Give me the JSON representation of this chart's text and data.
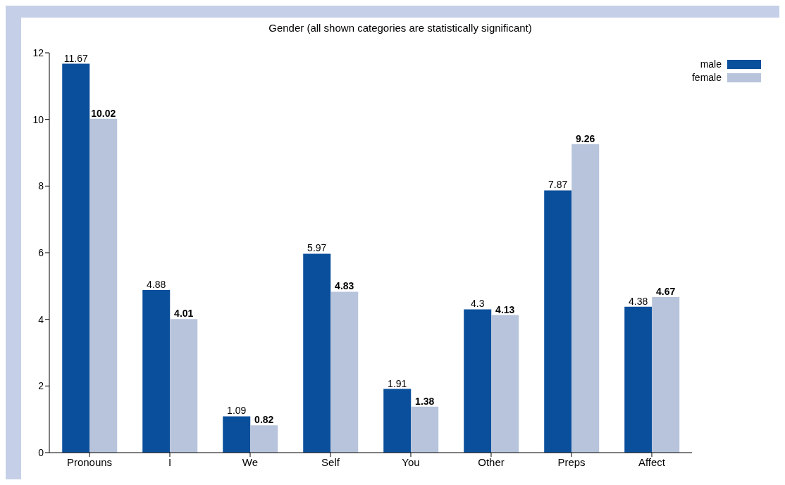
{
  "chart_data": {
    "type": "bar",
    "title": "Gender (all shown categories are statistically significant)",
    "categories": [
      "Pronouns",
      "I",
      "We",
      "Self",
      "You",
      "Other",
      "Preps",
      "Affect"
    ],
    "series": [
      {
        "name": "male",
        "color": "#0a4f9c",
        "values": [
          11.67,
          4.88,
          1.09,
          5.97,
          1.91,
          4.3,
          7.87,
          4.38
        ]
      },
      {
        "name": "female",
        "color": "#b8c4dc",
        "values": [
          10.02,
          4.01,
          0.82,
          4.83,
          1.38,
          4.13,
          9.26,
          4.67
        ]
      }
    ],
    "ylim": [
      0,
      12
    ],
    "yticks": [
      0,
      2,
      4,
      6,
      8,
      10,
      12
    ],
    "grid": false,
    "legend": "top right",
    "data_labels": true
  }
}
